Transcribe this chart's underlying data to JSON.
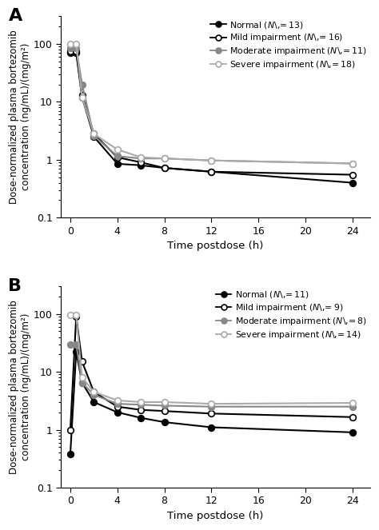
{
  "panel_A": {
    "label": "A",
    "series": [
      {
        "name": "Normal",
        "x": [
          0,
          0.5,
          1,
          2,
          4,
          6,
          8,
          12,
          24
        ],
        "y": [
          70,
          70,
          12.0,
          2.5,
          0.85,
          0.8,
          0.72,
          0.62,
          0.4
        ],
        "color": "#000000",
        "fillstyle": "full"
      },
      {
        "name": "Mild impairment",
        "x": [
          0,
          0.5,
          1,
          2,
          4,
          6,
          8,
          12,
          24
        ],
        "y": [
          75,
          75,
          13.0,
          2.8,
          1.1,
          0.9,
          0.72,
          0.62,
          0.55
        ],
        "color": "#000000",
        "fillstyle": "none"
      },
      {
        "name": "Moderate impairment",
        "x": [
          0,
          0.5,
          1,
          2,
          4,
          6,
          8,
          12,
          24
        ],
        "y": [
          85,
          85,
          20.0,
          2.6,
          1.15,
          1.05,
          1.05,
          0.97,
          0.86
        ],
        "color": "#888888",
        "fillstyle": "full"
      },
      {
        "name": "Severe impairment",
        "x": [
          0,
          0.5,
          1,
          2,
          4,
          6,
          8,
          12,
          24
        ],
        "y": [
          100,
          100,
          12.0,
          2.8,
          1.5,
          1.1,
          1.05,
          0.97,
          0.86
        ],
        "color": "#aaaaaa",
        "fillstyle": "none"
      }
    ],
    "legend_labels": [
      "Normal (N = 13)",
      "Mild impairment (N = 16)",
      "Moderate impairment (N = 11)",
      "Severe impairment (N = 18)"
    ]
  },
  "panel_B": {
    "label": "B",
    "series": [
      {
        "name": "Normal",
        "x": [
          0,
          0.5,
          1,
          2,
          4,
          6,
          8,
          12,
          24
        ],
        "y": [
          0.38,
          22,
          6.5,
          3.0,
          2.0,
          1.6,
          1.35,
          1.1,
          0.9
        ],
        "color": "#000000",
        "fillstyle": "full"
      },
      {
        "name": "Mild impairment",
        "x": [
          0,
          0.5,
          1,
          2,
          4,
          6,
          8,
          12,
          24
        ],
        "y": [
          1.0,
          90,
          15.0,
          4.5,
          2.5,
          2.2,
          2.1,
          1.9,
          1.65
        ],
        "color": "#000000",
        "fillstyle": "none"
      },
      {
        "name": "Moderate impairment",
        "x": [
          0,
          0.5,
          1,
          2,
          4,
          6,
          8,
          12,
          24
        ],
        "y": [
          30,
          30,
          6.5,
          4.0,
          2.8,
          2.7,
          2.6,
          2.5,
          2.5
        ],
        "color": "#888888",
        "fillstyle": "full"
      },
      {
        "name": "Severe impairment",
        "x": [
          0,
          0.5,
          1,
          2,
          4,
          6,
          8,
          12,
          24
        ],
        "y": [
          95,
          95,
          8.0,
          4.5,
          3.2,
          3.0,
          3.0,
          2.8,
          2.9
        ],
        "color": "#aaaaaa",
        "fillstyle": "none"
      }
    ],
    "legend_labels": [
      "Normal (N = 11)",
      "Mild impairment (N = 9)",
      "Moderate impairment (N = 8)",
      "Severe impairment (N = 14)"
    ]
  },
  "xlabel": "Time postdose (h)",
  "ylabel": "Dose-normalized plasma bortezomib\nconcentration (ng/mL)/(mg/m²)",
  "xlim": [
    -0.8,
    25.5
  ],
  "ylim": [
    0.1,
    300
  ],
  "xticks": [
    0,
    4,
    8,
    12,
    16,
    20,
    24
  ],
  "ytick_vals": [
    0.1,
    1,
    10,
    100
  ],
  "ytick_labels": [
    "0.1",
    "1",
    "10",
    "100"
  ],
  "background_color": "#ffffff",
  "panel_bg": "#ffffff",
  "markersize": 5.5,
  "linewidth": 1.5
}
